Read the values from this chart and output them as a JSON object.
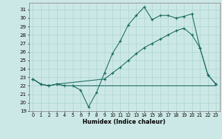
{
  "title": "",
  "xlabel": "Humidex (Indice chaleur)",
  "bg_color": "#cce8e6",
  "line_color": "#1a6b5e",
  "grid_color": "#aad4d0",
  "xlim": [
    -0.5,
    23.5
  ],
  "ylim": [
    19,
    31.8
  ],
  "yticks": [
    19,
    20,
    21,
    22,
    23,
    24,
    25,
    26,
    27,
    28,
    29,
    30,
    31
  ],
  "xticks": [
    0,
    1,
    2,
    3,
    4,
    5,
    6,
    7,
    8,
    9,
    10,
    11,
    12,
    13,
    14,
    15,
    16,
    17,
    18,
    19,
    20,
    21,
    22,
    23
  ],
  "line1_x": [
    0,
    1,
    2,
    3,
    4,
    5,
    6,
    7,
    8,
    9,
    10,
    11,
    12,
    13,
    14,
    15,
    16,
    17,
    18,
    19,
    20,
    21,
    22,
    23
  ],
  "line1_y": [
    22.8,
    22.2,
    22.0,
    22.2,
    22.0,
    22.0,
    21.5,
    19.5,
    21.2,
    23.5,
    25.8,
    27.3,
    29.2,
    30.3,
    31.3,
    29.8,
    30.3,
    30.3,
    30.0,
    30.2,
    30.5,
    26.5,
    23.3,
    22.2
  ],
  "line2_x": [
    0,
    1,
    2,
    3,
    4,
    5,
    6,
    7,
    8,
    9,
    10,
    11,
    12,
    13,
    14,
    15,
    16,
    17,
    18,
    19,
    20,
    21,
    22,
    23
  ],
  "line2_y": [
    22.8,
    22.2,
    22.0,
    22.2,
    22.0,
    22.0,
    22.0,
    22.0,
    22.0,
    22.0,
    22.0,
    22.0,
    22.0,
    22.0,
    22.0,
    22.0,
    22.0,
    22.0,
    22.0,
    22.0,
    22.0,
    22.0,
    22.0,
    22.0
  ],
  "line3_x": [
    0,
    1,
    2,
    3,
    9,
    10,
    11,
    12,
    13,
    14,
    15,
    16,
    17,
    18,
    19,
    20,
    21,
    22,
    23
  ],
  "line3_y": [
    22.8,
    22.2,
    22.0,
    22.2,
    22.8,
    23.5,
    24.2,
    25.0,
    25.8,
    26.5,
    27.0,
    27.5,
    28.0,
    28.5,
    28.8,
    28.0,
    26.5,
    23.3,
    22.2
  ]
}
